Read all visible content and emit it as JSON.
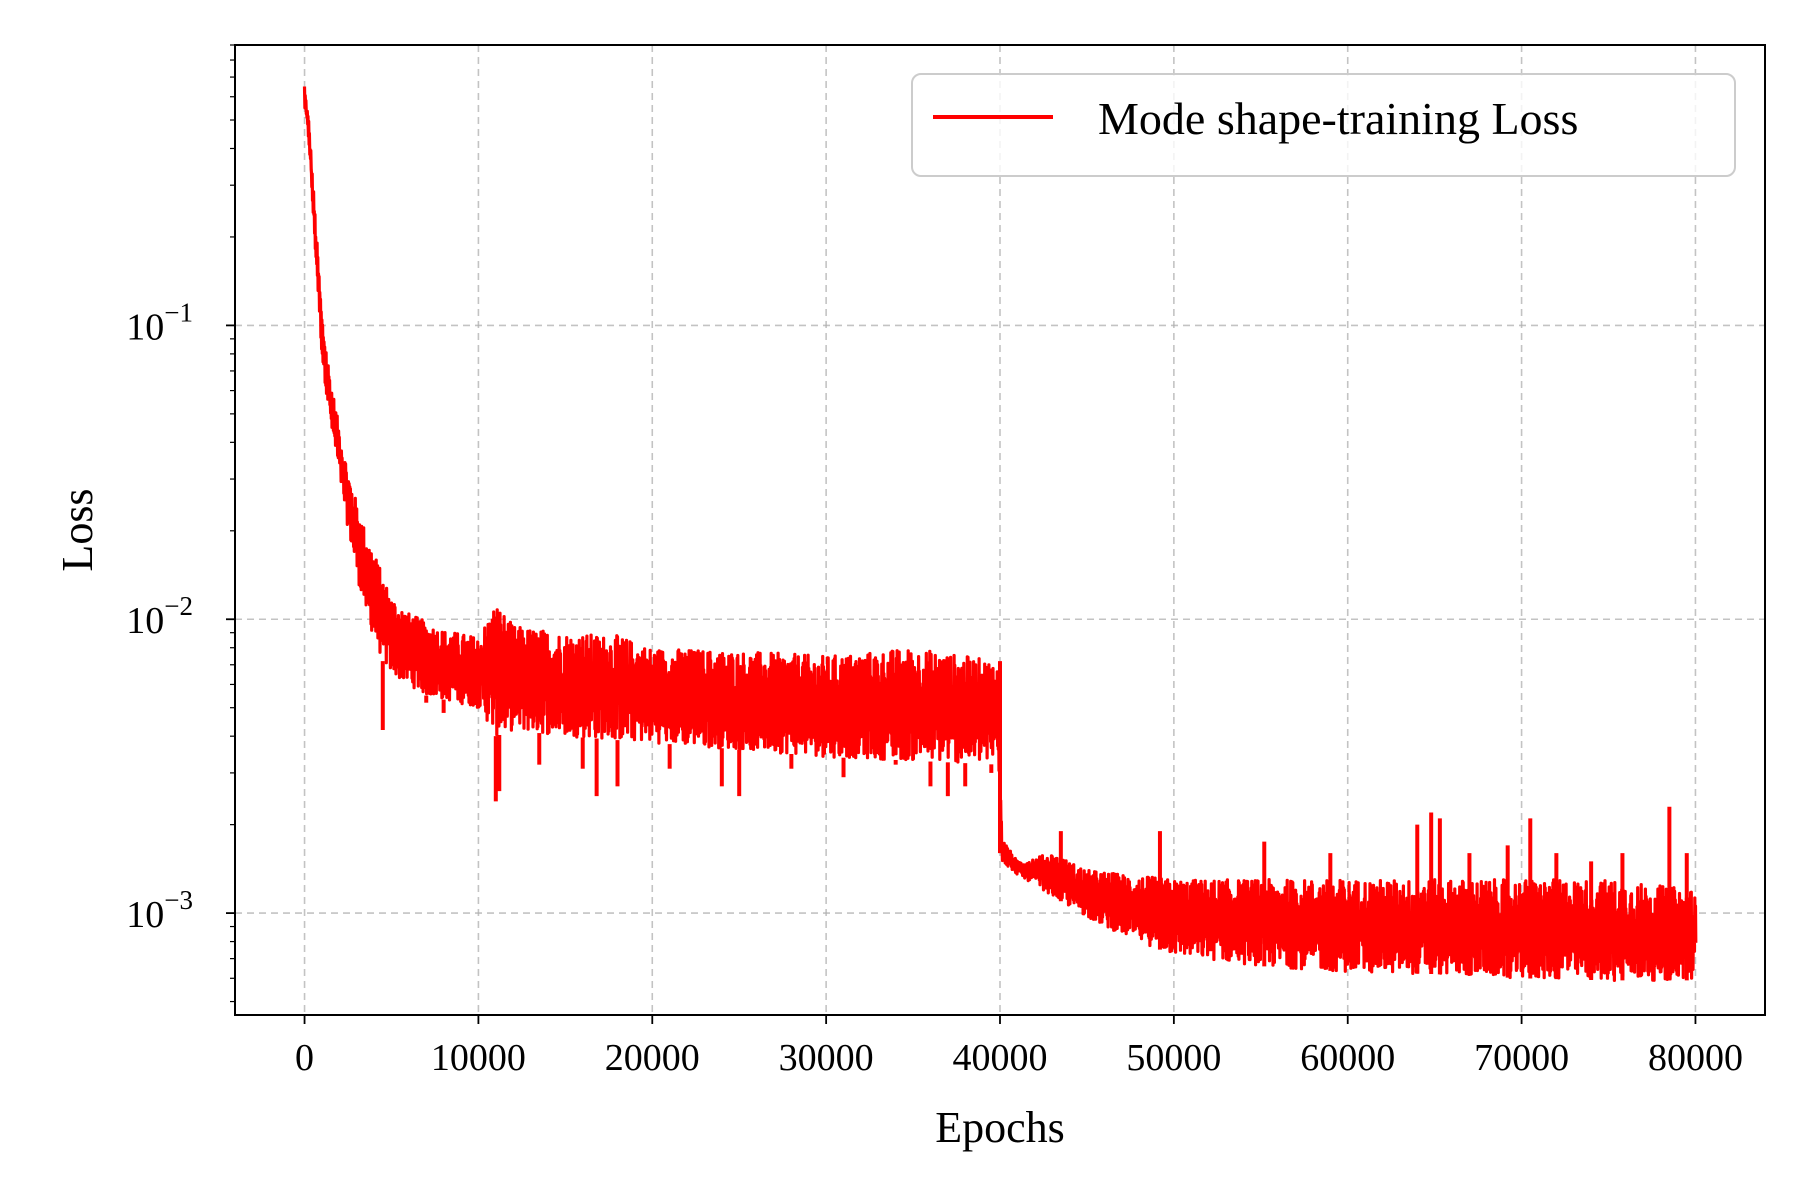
{
  "chart_data": {
    "type": "line",
    "title": "",
    "xlabel": "Epochs",
    "ylabel": "Loss",
    "xscale": "linear",
    "yscale": "log",
    "xlim": [
      -4000,
      84000
    ],
    "ylim": [
      0.00045,
      0.9
    ],
    "grid": true,
    "legend_position": "top-right",
    "x_ticks": [
      {
        "value": 0,
        "label": "0"
      },
      {
        "value": 10000,
        "label": "10000"
      },
      {
        "value": 20000,
        "label": "20000"
      },
      {
        "value": 30000,
        "label": "30000"
      },
      {
        "value": 40000,
        "label": "40000"
      },
      {
        "value": 50000,
        "label": "50000"
      },
      {
        "value": 60000,
        "label": "60000"
      },
      {
        "value": 70000,
        "label": "70000"
      },
      {
        "value": 80000,
        "label": "80000"
      }
    ],
    "y_ticks": [
      {
        "value": 0.1,
        "base": "10",
        "exponent": "−1"
      },
      {
        "value": 0.01,
        "base": "10",
        "exponent": "−2"
      },
      {
        "value": 0.001,
        "base": "10",
        "exponent": "−3"
      }
    ],
    "series": [
      {
        "name": "Mode shape-training Loss",
        "color": "#ff0000",
        "note_bands": "upper/lower envelope of the noisy loss curve (data units)",
        "upper": [
          [
            0,
            0.65
          ],
          [
            250,
            0.5
          ],
          [
            500,
            0.3
          ],
          [
            750,
            0.18
          ],
          [
            1000,
            0.11
          ],
          [
            1500,
            0.065
          ],
          [
            2000,
            0.045
          ],
          [
            2500,
            0.032
          ],
          [
            3000,
            0.025
          ],
          [
            3500,
            0.02
          ],
          [
            4000,
            0.017
          ],
          [
            4500,
            0.014
          ],
          [
            5000,
            0.012
          ],
          [
            6000,
            0.0105
          ],
          [
            7000,
            0.0098
          ],
          [
            8000,
            0.0092
          ],
          [
            10000,
            0.0087
          ],
          [
            11000,
            0.0115
          ],
          [
            12000,
            0.0095
          ],
          [
            15000,
            0.009
          ],
          [
            18000,
            0.0088
          ],
          [
            20000,
            0.008
          ],
          [
            25000,
            0.0078
          ],
          [
            30000,
            0.0075
          ],
          [
            35000,
            0.008
          ],
          [
            39900,
            0.0072
          ],
          [
            40100,
            0.0018
          ],
          [
            41000,
            0.0015
          ],
          [
            43000,
            0.0016
          ],
          [
            45000,
            0.0014
          ],
          [
            50000,
            0.0013
          ],
          [
            55000,
            0.0013
          ],
          [
            60000,
            0.0013
          ],
          [
            65000,
            0.0013
          ],
          [
            70000,
            0.0013
          ],
          [
            75000,
            0.0013
          ],
          [
            80000,
            0.0012
          ]
        ],
        "lower": [
          [
            0,
            0.55
          ],
          [
            250,
            0.4
          ],
          [
            500,
            0.22
          ],
          [
            750,
            0.13
          ],
          [
            1000,
            0.075
          ],
          [
            1500,
            0.045
          ],
          [
            2000,
            0.03
          ],
          [
            2500,
            0.02
          ],
          [
            3000,
            0.014
          ],
          [
            3500,
            0.0105
          ],
          [
            4000,
            0.0085
          ],
          [
            4500,
            0.0072
          ],
          [
            5000,
            0.0065
          ],
          [
            7000,
            0.0055
          ],
          [
            10000,
            0.005
          ],
          [
            11000,
            0.004
          ],
          [
            12000,
            0.0042
          ],
          [
            15000,
            0.004
          ],
          [
            20000,
            0.0038
          ],
          [
            25000,
            0.0036
          ],
          [
            30000,
            0.0034
          ],
          [
            35000,
            0.0033
          ],
          [
            39900,
            0.0032
          ],
          [
            40100,
            0.0015
          ],
          [
            41000,
            0.00135
          ],
          [
            42000,
            0.00125
          ],
          [
            44000,
            0.00105
          ],
          [
            46000,
            0.0009
          ],
          [
            48000,
            0.0008
          ],
          [
            50000,
            0.00072
          ],
          [
            55000,
            0.00066
          ],
          [
            60000,
            0.00063
          ],
          [
            65000,
            0.00062
          ],
          [
            70000,
            0.0006
          ],
          [
            75000,
            0.00059
          ],
          [
            80000,
            0.00059
          ]
        ],
        "spikes": [
          [
            4500,
            0.0042
          ],
          [
            7000,
            0.0052
          ],
          [
            8000,
            0.0048
          ],
          [
            11000,
            0.0024
          ],
          [
            11200,
            0.0026
          ],
          [
            13500,
            0.0032
          ],
          [
            16000,
            0.0031
          ],
          [
            16800,
            0.0025
          ],
          [
            18000,
            0.0027
          ],
          [
            21000,
            0.0031
          ],
          [
            24000,
            0.0027
          ],
          [
            25000,
            0.0025
          ],
          [
            28000,
            0.0031
          ],
          [
            31000,
            0.0029
          ],
          [
            34000,
            0.0032
          ],
          [
            36000,
            0.0027
          ],
          [
            37000,
            0.0025
          ],
          [
            38000,
            0.0027
          ],
          [
            39500,
            0.003
          ],
          [
            43500,
            0.0019
          ],
          [
            49200,
            0.0019
          ],
          [
            55200,
            0.00175
          ],
          [
            59000,
            0.0016
          ],
          [
            64000,
            0.002
          ],
          [
            64800,
            0.0022
          ],
          [
            65300,
            0.0021
          ],
          [
            67000,
            0.0016
          ],
          [
            69200,
            0.0017
          ],
          [
            70500,
            0.0021
          ],
          [
            72000,
            0.0016
          ],
          [
            74000,
            0.0015
          ],
          [
            75800,
            0.0016
          ],
          [
            78500,
            0.0023
          ],
          [
            79500,
            0.0016
          ]
        ]
      }
    ]
  }
}
